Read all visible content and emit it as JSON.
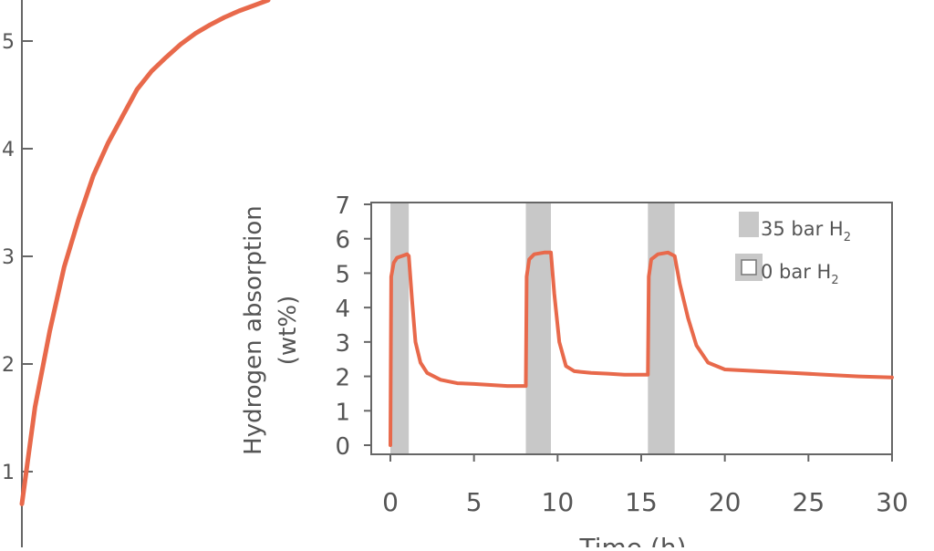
{
  "chart_data": [
    {
      "type": "line",
      "panel": "main",
      "y_ticks": [
        "1",
        "2",
        "3",
        "4",
        "5"
      ],
      "y_tick_values": [
        1,
        2,
        3,
        4,
        5
      ],
      "series": [
        {
          "color": "#e8694b",
          "points": [
            [
              0.02,
              0.7
            ],
            [
              0.2,
              1.6
            ],
            [
              0.4,
              2.3
            ],
            [
              0.6,
              2.9
            ],
            [
              0.8,
              3.35
            ],
            [
              1.0,
              3.75
            ],
            [
              1.2,
              4.05
            ],
            [
              1.4,
              4.3
            ],
            [
              1.6,
              4.55
            ],
            [
              1.8,
              4.72
            ],
            [
              2.0,
              4.85
            ],
            [
              2.2,
              4.97
            ],
            [
              2.4,
              5.07
            ],
            [
              2.6,
              5.15
            ],
            [
              2.8,
              5.22
            ],
            [
              3.0,
              5.28
            ],
            [
              3.2,
              5.33
            ],
            [
              3.4,
              5.38
            ]
          ]
        }
      ]
    },
    {
      "type": "line",
      "panel": "inset",
      "xlabel": "Time (h)",
      "ylabel_line1": "Hydrogen absorption",
      "ylabel_line2": "(wt%)",
      "x_ticks": [
        "0",
        "5",
        "10",
        "15",
        "20",
        "25",
        "30"
      ],
      "x_tick_values": [
        0,
        5,
        10,
        15,
        20,
        25,
        30
      ],
      "y_ticks": [
        "0",
        "1",
        "2",
        "3",
        "4",
        "5",
        "6",
        "7"
      ],
      "y_tick_values": [
        0,
        1,
        2,
        3,
        4,
        5,
        6,
        7
      ],
      "xlim": [
        -0.5,
        30
      ],
      "ylim": [
        -0.4,
        7
      ],
      "shaded_intervals": [
        [
          0,
          1.1
        ],
        [
          8.1,
          9.6
        ],
        [
          15.4,
          17.0
        ]
      ],
      "shade_color": "#c8c8c8",
      "legend": {
        "placement": "top-right",
        "entries": [
          {
            "label": "35 bar H",
            "subscript": "2",
            "swatch": "filled"
          },
          {
            "label": "0 bar H",
            "subscript": "2",
            "swatch": "outline"
          }
        ]
      },
      "series": [
        {
          "color": "#e8694b",
          "points": [
            [
              0,
              0
            ],
            [
              0.05,
              4.9
            ],
            [
              0.2,
              5.3
            ],
            [
              0.4,
              5.45
            ],
            [
              0.7,
              5.5
            ],
            [
              1.0,
              5.55
            ],
            [
              1.1,
              5.5
            ],
            [
              1.3,
              4.2
            ],
            [
              1.5,
              3.0
            ],
            [
              1.8,
              2.4
            ],
            [
              2.2,
              2.1
            ],
            [
              3.0,
              1.9
            ],
            [
              4.0,
              1.8
            ],
            [
              5.0,
              1.78
            ],
            [
              6.0,
              1.75
            ],
            [
              7.0,
              1.72
            ],
            [
              8.1,
              1.72
            ],
            [
              8.15,
              4.9
            ],
            [
              8.3,
              5.4
            ],
            [
              8.6,
              5.55
            ],
            [
              9.2,
              5.6
            ],
            [
              9.6,
              5.6
            ],
            [
              9.8,
              4.4
            ],
            [
              10.1,
              3.0
            ],
            [
              10.5,
              2.3
            ],
            [
              11.0,
              2.15
            ],
            [
              12.0,
              2.1
            ],
            [
              13.0,
              2.08
            ],
            [
              14.0,
              2.05
            ],
            [
              15.4,
              2.05
            ],
            [
              15.45,
              4.9
            ],
            [
              15.6,
              5.4
            ],
            [
              16.0,
              5.55
            ],
            [
              16.6,
              5.6
            ],
            [
              17.0,
              5.5
            ],
            [
              17.3,
              4.7
            ],
            [
              17.8,
              3.7
            ],
            [
              18.3,
              2.9
            ],
            [
              19.0,
              2.4
            ],
            [
              20.0,
              2.2
            ],
            [
              22.0,
              2.15
            ],
            [
              24.0,
              2.1
            ],
            [
              26.0,
              2.05
            ],
            [
              28.0,
              2.0
            ],
            [
              30.0,
              1.97
            ]
          ]
        }
      ]
    }
  ]
}
